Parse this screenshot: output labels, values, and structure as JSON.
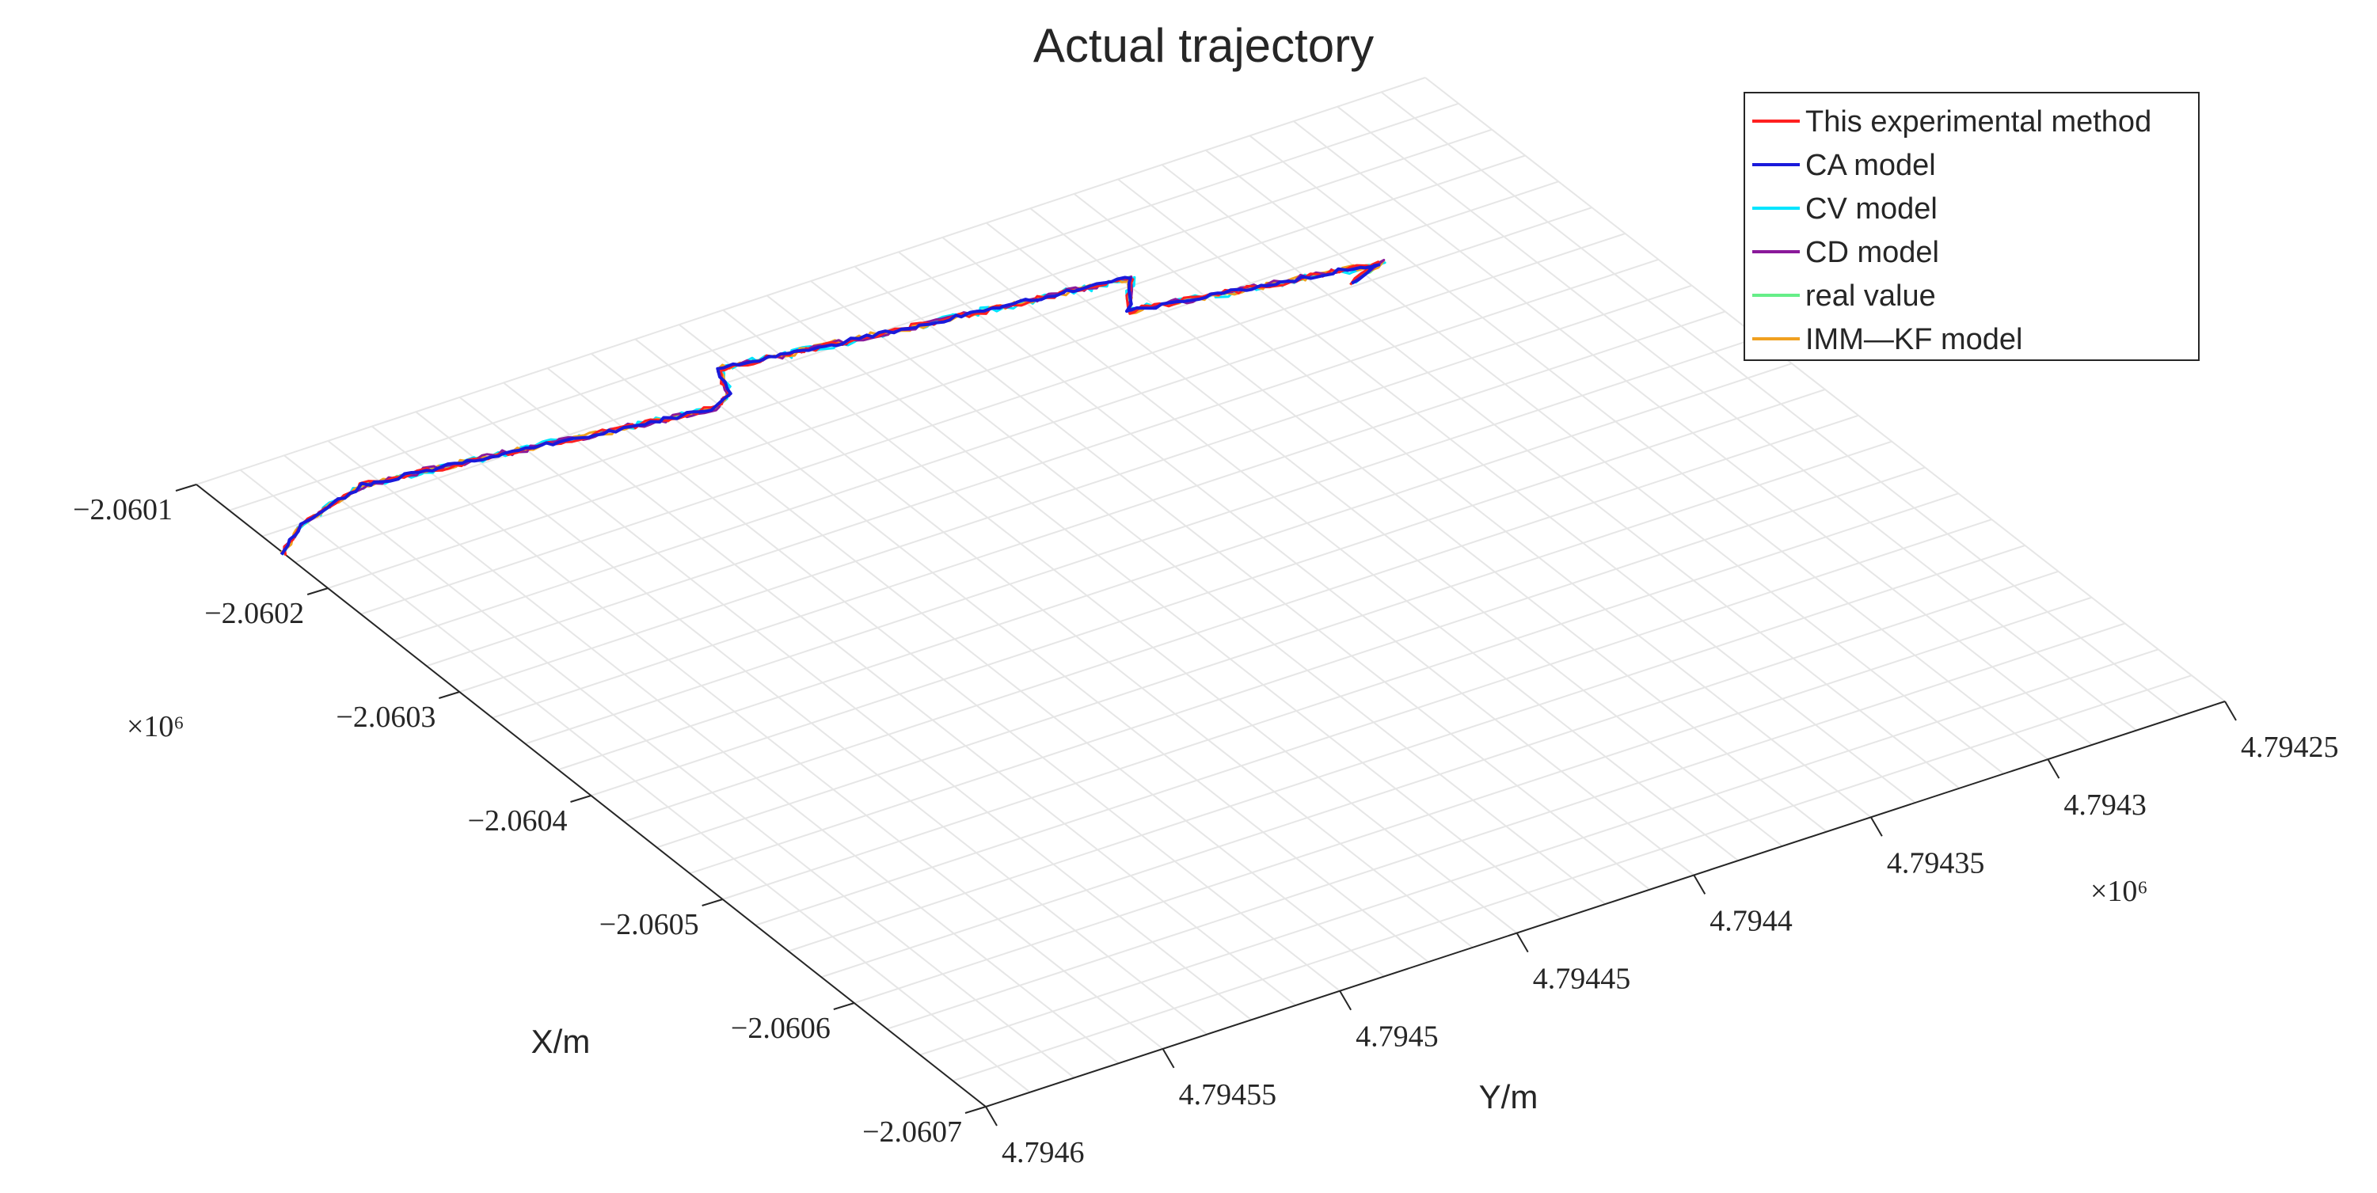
{
  "chart_data": {
    "type": "line",
    "projection": "3d",
    "title": "Actual trajectory",
    "xlabel": "X/m",
    "ylabel": "Y/m",
    "x_multiplier": "×10⁶",
    "y_multiplier": "×10⁶",
    "x_ticks": [
      "−2.0601",
      "−2.0602",
      "−2.0603",
      "−2.0604",
      "−2.0605",
      "−2.0606",
      "−2.0607"
    ],
    "y_ticks": [
      "4.7946",
      "4.79455",
      "4.7945",
      "4.79445",
      "4.7944",
      "4.79435",
      "4.7943",
      "4.79425"
    ],
    "grid": true,
    "legend_position": "top-right",
    "legend": [
      {
        "name": "This experimental method",
        "color": "#ff2020"
      },
      {
        "name": "CA model",
        "color": "#1a1adb"
      },
      {
        "name": "CV model",
        "color": "#00e5ff"
      },
      {
        "name": "CD model",
        "color": "#8a1a9a"
      },
      {
        "name": "real value",
        "color": "#66ee88"
      },
      {
        "name": "IMM—KF model",
        "color": "#f0a020"
      }
    ],
    "path_points": [
      {
        "x": -2.060166,
        "y": 4.7946
      },
      {
        "x": -2.060151,
        "y": 4.794589
      },
      {
        "x": -2.060138,
        "y": 4.794567
      },
      {
        "x": -2.060147,
        "y": 4.794534
      },
      {
        "x": -2.060158,
        "y": 4.7945
      },
      {
        "x": -2.060165,
        "y": 4.794477
      },
      {
        "x": -2.060158,
        "y": 4.79447
      },
      {
        "x": -2.060139,
        "y": 4.794466
      },
      {
        "x": -2.060152,
        "y": 4.794423
      },
      {
        "x": -2.06017,
        "y": 4.79436
      },
      {
        "x": -2.060192,
        "y": 4.794369
      },
      {
        "x": -2.060204,
        "y": 4.794338
      },
      {
        "x": -2.060216,
        "y": 4.794306
      },
      {
        "x": -2.060223,
        "y": 4.794317
      }
    ]
  }
}
